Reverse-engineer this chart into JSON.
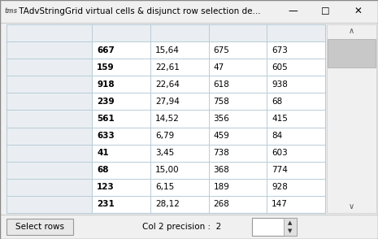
{
  "title_prefix": "tms",
  "title_main": " TAdvStringGrid virtual cells & disjunct row selection de...",
  "window_bg": "#f0f0f0",
  "grid_bg": "#ffffff",
  "grid_line_color": "#b8ccd8",
  "header_col_bg": "#eaeef2",
  "header_row_bg": "#eaeef2",
  "rows": [
    [
      "",
      "",
      "",
      "",
      ""
    ],
    [
      "667",
      "15,64",
      "675",
      "673",
      ""
    ],
    [
      "159",
      "22,61",
      "47",
      "605",
      ""
    ],
    [
      "918",
      "22,64",
      "618",
      "938",
      ""
    ],
    [
      "239",
      "27,94",
      "758",
      "68",
      ""
    ],
    [
      "561",
      "14,52",
      "356",
      "415",
      ""
    ],
    [
      "633",
      "6,79",
      "459",
      "84",
      ""
    ],
    [
      "41",
      "3,45",
      "738",
      "603",
      ""
    ],
    [
      "68",
      "15,00",
      "368",
      "774",
      ""
    ],
    [
      "123",
      "6,15",
      "189",
      "928",
      ""
    ],
    [
      "231",
      "28,12",
      "268",
      "147",
      ""
    ]
  ],
  "col_weights": [
    0.18,
    0.18,
    0.18,
    0.18,
    0.18
  ],
  "text_color": "#000000",
  "bold_color": "#000000",
  "footer_btn_label": "Select rows",
  "footer_label": "Col 2 precision :  2",
  "scrollbar_bg": "#f0f0f0",
  "scrollbar_thumb": "#c8c8c8",
  "title_bar_bg": "#f0f0f0",
  "title_sep_color": "#cccccc",
  "footer_sep_color": "#cccccc",
  "grid_border_color": "#a0b8c8"
}
